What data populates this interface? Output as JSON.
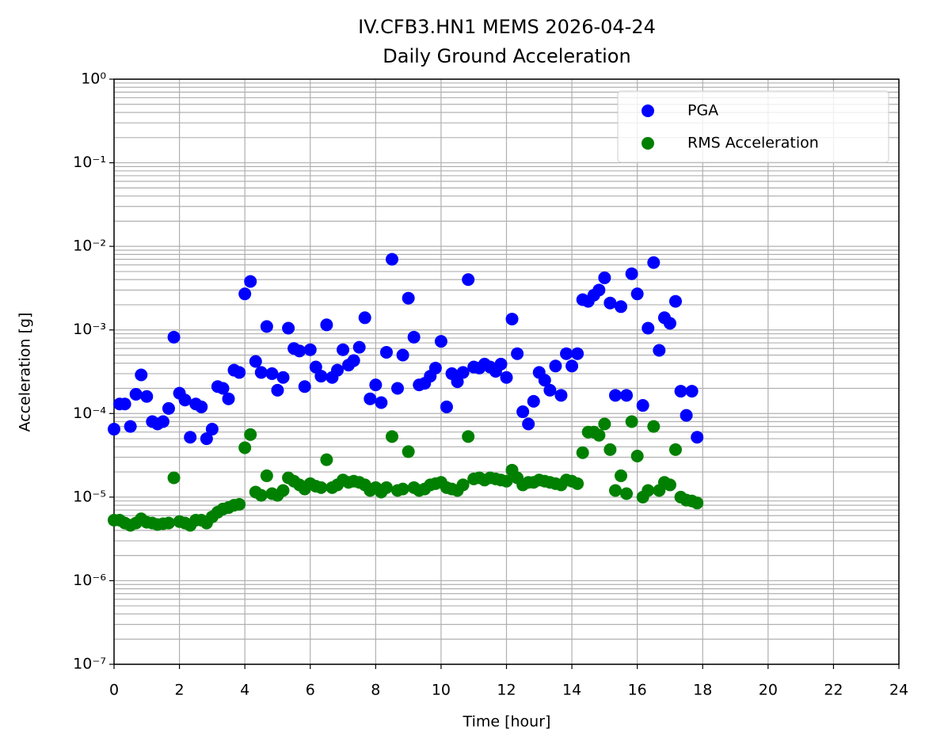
{
  "chart_data": {
    "type": "scatter",
    "title": "IV.CFB3.HN1 MEMS 2026-04-24",
    "subtitle": "Daily Ground Acceleration",
    "x_label": "Time [hour]",
    "y_label": "Acceleration [g]",
    "x": [
      0,
      0.17,
      0.33,
      0.5,
      0.67,
      0.83,
      1,
      1.17,
      1.33,
      1.5,
      1.67,
      1.83,
      2,
      2.17,
      2.33,
      2.5,
      2.67,
      2.83,
      3,
      3.17,
      3.33,
      3.5,
      3.67,
      3.83,
      4,
      4.17,
      4.33,
      4.5,
      4.67,
      4.83,
      5,
      5.17,
      5.33,
      5.5,
      5.67,
      5.83,
      6,
      6.17,
      6.33,
      6.5,
      6.67,
      6.83,
      7,
      7.17,
      7.33,
      7.5,
      7.67,
      7.83,
      8,
      8.17,
      8.33,
      8.5,
      8.67,
      8.83,
      9,
      9.17,
      9.33,
      9.5,
      9.67,
      9.83,
      10,
      10.17,
      10.33,
      10.5,
      10.67,
      10.83,
      11,
      11.17,
      11.33,
      11.5,
      11.67,
      11.83,
      12,
      12.17,
      12.33,
      12.5,
      12.67,
      12.83,
      13,
      13.17,
      13.33,
      13.5,
      13.67,
      13.83,
      14,
      14.17,
      14.33,
      14.5,
      14.67,
      14.83,
      15,
      15.17,
      15.33,
      15.5,
      15.67,
      15.83,
      16,
      16.17,
      16.33,
      16.5,
      16.67,
      16.83,
      17,
      17.17,
      17.33,
      17.5,
      17.67,
      17.83
    ],
    "series": [
      {
        "name": "PGA",
        "color": "#0000ff",
        "values": [
          6.5e-05,
          0.00013,
          0.00013,
          7e-05,
          0.00017,
          0.00029,
          0.00016,
          8e-05,
          7.5e-05,
          8e-05,
          0.000115,
          0.00082,
          0.000175,
          0.000145,
          5.2e-05,
          0.00013,
          0.00012,
          5e-05,
          6.5e-05,
          0.00021,
          0.0002,
          0.00015,
          0.00033,
          0.00031,
          0.0027,
          0.0038,
          0.00042,
          0.00031,
          0.0011,
          0.0003,
          0.00019,
          0.00027,
          0.00105,
          0.0006,
          0.00056,
          0.00021,
          0.00058,
          0.00036,
          0.00028,
          0.00115,
          0.00027,
          0.00033,
          0.00058,
          0.00038,
          0.00043,
          0.00062,
          0.0014,
          0.00015,
          0.00022,
          0.000135,
          0.00054,
          0.007,
          0.0002,
          0.0005,
          0.0024,
          0.00082,
          0.00022,
          0.00023,
          0.00028,
          0.00035,
          0.00073,
          0.00012,
          0.0003,
          0.00024,
          0.00031,
          0.004,
          0.00036,
          0.00035,
          0.00039,
          0.00036,
          0.00032,
          0.00039,
          0.00027,
          0.00135,
          0.00052,
          0.000105,
          7.5e-05,
          0.00014,
          0.00031,
          0.00025,
          0.00019,
          0.00037,
          0.000165,
          0.00052,
          0.00037,
          0.00052,
          0.0023,
          0.0022,
          0.0026,
          0.003,
          0.0042,
          0.0021,
          0.000165,
          0.0019,
          0.000165,
          0.0047,
          0.0027,
          0.000125,
          0.00105,
          0.0064,
          0.00057,
          0.0014,
          0.0012,
          0.0022,
          0.000185,
          9.5e-05,
          0.000185,
          5.2e-05
        ]
      },
      {
        "name": "RMS Acceleration",
        "color": "#008000",
        "values": [
          5.3e-06,
          5.3e-06,
          4.9e-06,
          4.6e-06,
          4.9e-06,
          5.5e-06,
          5e-06,
          4.9e-06,
          4.7e-06,
          4.8e-06,
          4.9e-06,
          1.7e-05,
          5.1e-06,
          4.9e-06,
          4.6e-06,
          5.3e-06,
          5.3e-06,
          4.9e-06,
          5.8e-06,
          6.6e-06,
          7.2e-06,
          7.5e-06,
          8e-06,
          8.2e-06,
          3.9e-05,
          5.6e-05,
          1.15e-05,
          1.05e-05,
          1.8e-05,
          1.1e-05,
          1.05e-05,
          1.2e-05,
          1.7e-05,
          1.55e-05,
          1.4e-05,
          1.25e-05,
          1.45e-05,
          1.35e-05,
          1.3e-05,
          2.8e-05,
          1.3e-05,
          1.4e-05,
          1.6e-05,
          1.5e-05,
          1.55e-05,
          1.5e-05,
          1.4e-05,
          1.2e-05,
          1.3e-05,
          1.15e-05,
          1.3e-05,
          5.3e-05,
          1.2e-05,
          1.25e-05,
          3.5e-05,
          1.3e-05,
          1.2e-05,
          1.25e-05,
          1.4e-05,
          1.45e-05,
          1.5e-05,
          1.3e-05,
          1.25e-05,
          1.2e-05,
          1.4e-05,
          5.3e-05,
          1.65e-05,
          1.7e-05,
          1.6e-05,
          1.7e-05,
          1.65e-05,
          1.6e-05,
          1.55e-05,
          2.1e-05,
          1.7e-05,
          1.4e-05,
          1.5e-05,
          1.5e-05,
          1.6e-05,
          1.55e-05,
          1.5e-05,
          1.45e-05,
          1.4e-05,
          1.6e-05,
          1.55e-05,
          1.45e-05,
          3.4e-05,
          6e-05,
          6e-05,
          5.5e-05,
          7.5e-05,
          3.7e-05,
          1.2e-05,
          1.8e-05,
          1.1e-05,
          8e-05,
          3.1e-05,
          1e-05,
          1.2e-05,
          7e-05,
          1.2e-05,
          1.5e-05,
          1.4e-05,
          3.7e-05,
          1e-05,
          9.2e-06,
          9e-06,
          8.5e-06
        ]
      }
    ],
    "xlim": [
      0,
      24
    ],
    "xticks": [
      0,
      2,
      4,
      6,
      8,
      10,
      12,
      14,
      16,
      18,
      20,
      22,
      24
    ],
    "ylim": [
      1e-07,
      1
    ],
    "yticks": [
      {
        "value": 1e-07,
        "label": "10⁻⁷"
      },
      {
        "value": 1e-06,
        "label": "10⁻⁶"
      },
      {
        "value": 1e-05,
        "label": "10⁻⁵"
      },
      {
        "value": 0.0001,
        "label": "10⁻⁴"
      },
      {
        "value": 0.001,
        "label": "10⁻³"
      },
      {
        "value": 0.01,
        "label": "10⁻²"
      },
      {
        "value": 0.1,
        "label": "10⁻¹"
      },
      {
        "value": 1,
        "label": "10⁰"
      }
    ],
    "y_scale": "log",
    "grid": true,
    "legend": "upper right"
  }
}
